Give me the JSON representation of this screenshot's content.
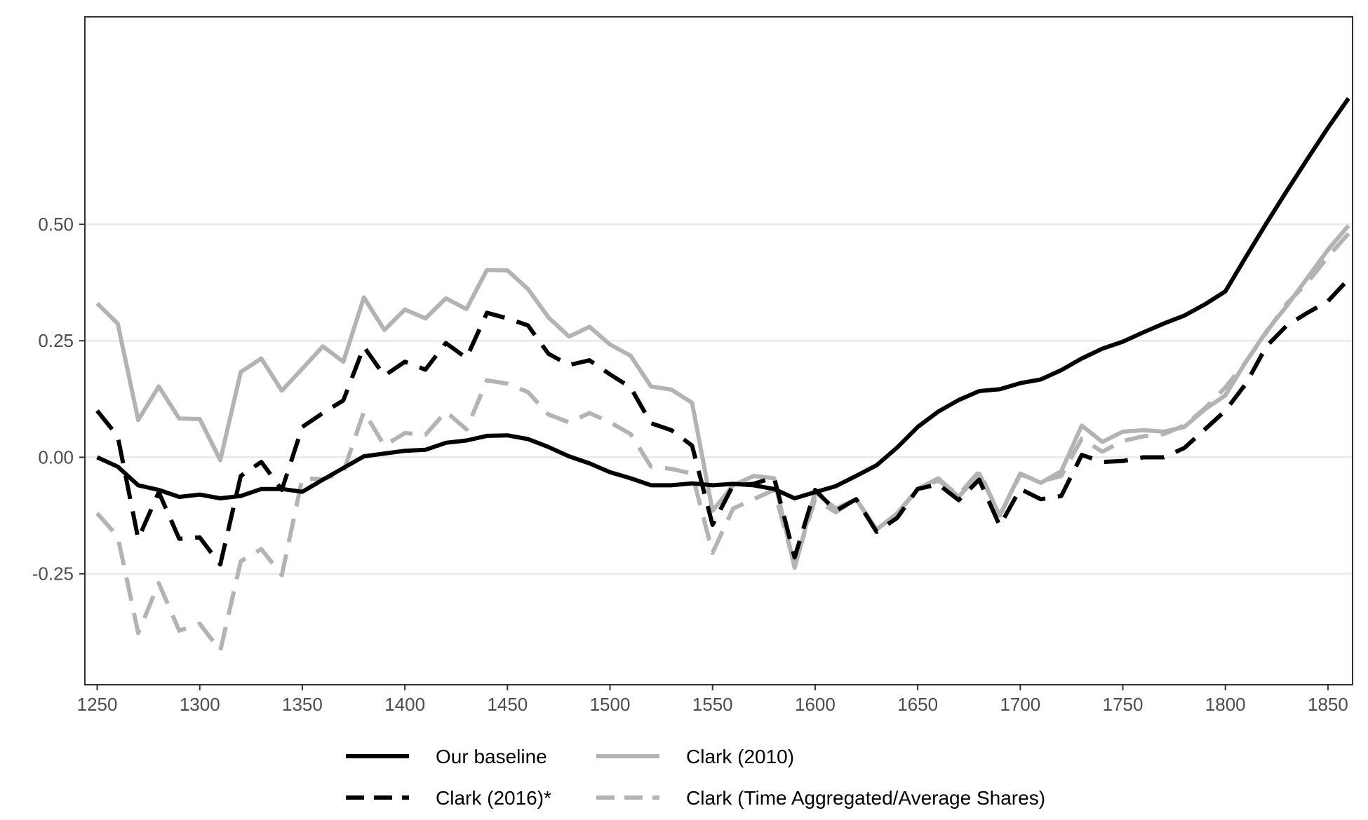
{
  "chart_data": {
    "type": "line",
    "title": "",
    "xlabel": "",
    "ylabel": "",
    "xlim": [
      1244,
      1862
    ],
    "ylim": [
      -0.488,
      0.945
    ],
    "x_ticks": [
      1250,
      1300,
      1350,
      1400,
      1450,
      1500,
      1550,
      1600,
      1650,
      1700,
      1750,
      1800,
      1850
    ],
    "y_ticks": [
      -0.25,
      0.0,
      0.25,
      0.5
    ],
    "y_tick_labels": [
      "-0.25",
      "0.00",
      "0.25",
      "0.50"
    ],
    "grid": "horizontal major gridlines",
    "legend_position": "bottom",
    "series": [
      {
        "name": "Our baseline",
        "color": "#000000",
        "dash": "solid",
        "x": [
          1250,
          1260,
          1270,
          1280,
          1290,
          1300,
          1310,
          1320,
          1330,
          1340,
          1350,
          1360,
          1370,
          1380,
          1390,
          1400,
          1410,
          1420,
          1430,
          1440,
          1450,
          1460,
          1470,
          1480,
          1490,
          1500,
          1510,
          1520,
          1530,
          1540,
          1550,
          1560,
          1570,
          1580,
          1590,
          1600,
          1610,
          1620,
          1630,
          1640,
          1650,
          1660,
          1670,
          1680,
          1690,
          1700,
          1710,
          1720,
          1730,
          1740,
          1750,
          1760,
          1770,
          1780,
          1790,
          1800,
          1810,
          1820,
          1830,
          1840,
          1850,
          1860
        ],
        "values": [
          0.0,
          -0.02,
          -0.06,
          -0.07,
          -0.085,
          -0.08,
          -0.088,
          -0.083,
          -0.068,
          -0.068,
          -0.074,
          -0.048,
          -0.023,
          0.002,
          0.008,
          0.014,
          0.016,
          0.031,
          0.036,
          0.046,
          0.047,
          0.039,
          0.022,
          0.002,
          -0.013,
          -0.032,
          -0.045,
          -0.06,
          -0.06,
          -0.056,
          -0.06,
          -0.057,
          -0.06,
          -0.068,
          -0.088,
          -0.075,
          -0.062,
          -0.04,
          -0.017,
          0.021,
          0.065,
          0.098,
          0.123,
          0.142,
          0.146,
          0.159,
          0.167,
          0.187,
          0.212,
          0.233,
          0.248,
          0.268,
          0.287,
          0.304,
          0.328,
          0.356,
          0.43,
          0.502,
          0.572,
          0.64,
          0.707,
          0.77
        ]
      },
      {
        "name": "Clark (2010)",
        "color": "#b3b3b3",
        "dash": "solid",
        "x": [
          1250,
          1260,
          1270,
          1280,
          1290,
          1300,
          1310,
          1320,
          1330,
          1340,
          1350,
          1360,
          1370,
          1380,
          1390,
          1400,
          1410,
          1420,
          1430,
          1440,
          1450,
          1460,
          1470,
          1480,
          1490,
          1500,
          1510,
          1520,
          1530,
          1540,
          1550,
          1560,
          1570,
          1580,
          1590,
          1600,
          1610,
          1620,
          1630,
          1640,
          1650,
          1660,
          1670,
          1680,
          1690,
          1700,
          1710,
          1720,
          1730,
          1740,
          1750,
          1760,
          1770,
          1780,
          1790,
          1800,
          1810,
          1820,
          1830,
          1840,
          1850,
          1860
        ],
        "values": [
          0.33,
          0.287,
          0.08,
          0.152,
          0.083,
          0.082,
          -0.006,
          0.183,
          0.212,
          0.143,
          0.19,
          0.238,
          0.205,
          0.343,
          0.273,
          0.317,
          0.298,
          0.341,
          0.318,
          0.402,
          0.401,
          0.361,
          0.3,
          0.259,
          0.28,
          0.242,
          0.218,
          0.152,
          0.145,
          0.117,
          -0.115,
          -0.06,
          -0.04,
          -0.045,
          -0.237,
          -0.075,
          -0.11,
          -0.09,
          -0.155,
          -0.12,
          -0.068,
          -0.045,
          -0.085,
          -0.035,
          -0.125,
          -0.035,
          -0.055,
          -0.03,
          0.068,
          0.033,
          0.055,
          0.058,
          0.055,
          0.065,
          0.103,
          0.133,
          0.205,
          0.27,
          0.325,
          0.385,
          0.445,
          0.497
        ]
      },
      {
        "name": "Clark (2016)*",
        "color": "#000000",
        "dash": "dashed",
        "x": [
          1250,
          1260,
          1270,
          1280,
          1290,
          1300,
          1310,
          1320,
          1330,
          1340,
          1350,
          1360,
          1370,
          1380,
          1390,
          1400,
          1410,
          1420,
          1430,
          1440,
          1450,
          1460,
          1470,
          1480,
          1490,
          1500,
          1510,
          1520,
          1530,
          1540,
          1550,
          1560,
          1570,
          1580,
          1590,
          1600,
          1610,
          1620,
          1630,
          1640,
          1650,
          1660,
          1670,
          1680,
          1690,
          1700,
          1710,
          1720,
          1730,
          1740,
          1750,
          1760,
          1770,
          1780,
          1790,
          1800,
          1810,
          1820,
          1830,
          1840,
          1850,
          1860
        ],
        "values": [
          0.1,
          0.045,
          -0.175,
          -0.075,
          -0.175,
          -0.172,
          -0.23,
          -0.04,
          -0.01,
          -0.07,
          0.065,
          0.095,
          0.122,
          0.237,
          0.175,
          0.205,
          0.188,
          0.245,
          0.213,
          0.31,
          0.298,
          0.283,
          0.222,
          0.198,
          0.208,
          0.178,
          0.15,
          0.073,
          0.058,
          0.025,
          -0.145,
          -0.06,
          -0.057,
          -0.043,
          -0.215,
          -0.07,
          -0.115,
          -0.09,
          -0.16,
          -0.13,
          -0.068,
          -0.058,
          -0.092,
          -0.048,
          -0.147,
          -0.068,
          -0.09,
          -0.083,
          0.005,
          -0.01,
          -0.008,
          0.0,
          0.0,
          0.02,
          0.06,
          0.1,
          0.158,
          0.238,
          0.283,
          0.31,
          0.335,
          0.382
        ]
      },
      {
        "name": "Clark (Time Aggregated/Average Shares)",
        "color": "#b3b3b3",
        "dash": "dashed",
        "x": [
          1250,
          1260,
          1270,
          1280,
          1290,
          1300,
          1310,
          1320,
          1330,
          1340,
          1350,
          1360,
          1370,
          1380,
          1390,
          1400,
          1410,
          1420,
          1430,
          1440,
          1450,
          1460,
          1470,
          1480,
          1490,
          1500,
          1510,
          1520,
          1530,
          1540,
          1550,
          1560,
          1570,
          1580,
          1590,
          1600,
          1610,
          1620,
          1630,
          1640,
          1650,
          1660,
          1670,
          1680,
          1690,
          1700,
          1710,
          1720,
          1730,
          1740,
          1750,
          1760,
          1770,
          1780,
          1790,
          1800,
          1810,
          1820,
          1830,
          1840,
          1850,
          1860
        ],
        "values": [
          -0.12,
          -0.17,
          -0.377,
          -0.27,
          -0.372,
          -0.357,
          -0.415,
          -0.223,
          -0.197,
          -0.253,
          -0.045,
          -0.047,
          -0.032,
          0.098,
          0.025,
          0.052,
          0.048,
          0.098,
          0.06,
          0.165,
          0.158,
          0.14,
          0.092,
          0.075,
          0.095,
          0.075,
          0.05,
          -0.02,
          -0.025,
          -0.035,
          -0.205,
          -0.11,
          -0.09,
          -0.07,
          -0.232,
          -0.09,
          -0.118,
          -0.09,
          -0.155,
          -0.122,
          -0.068,
          -0.05,
          -0.08,
          -0.03,
          -0.125,
          -0.037,
          -0.052,
          -0.04,
          0.04,
          0.012,
          0.035,
          0.045,
          0.05,
          0.068,
          0.105,
          0.15,
          0.205,
          0.268,
          0.33,
          0.375,
          0.43,
          0.48
        ]
      }
    ]
  }
}
